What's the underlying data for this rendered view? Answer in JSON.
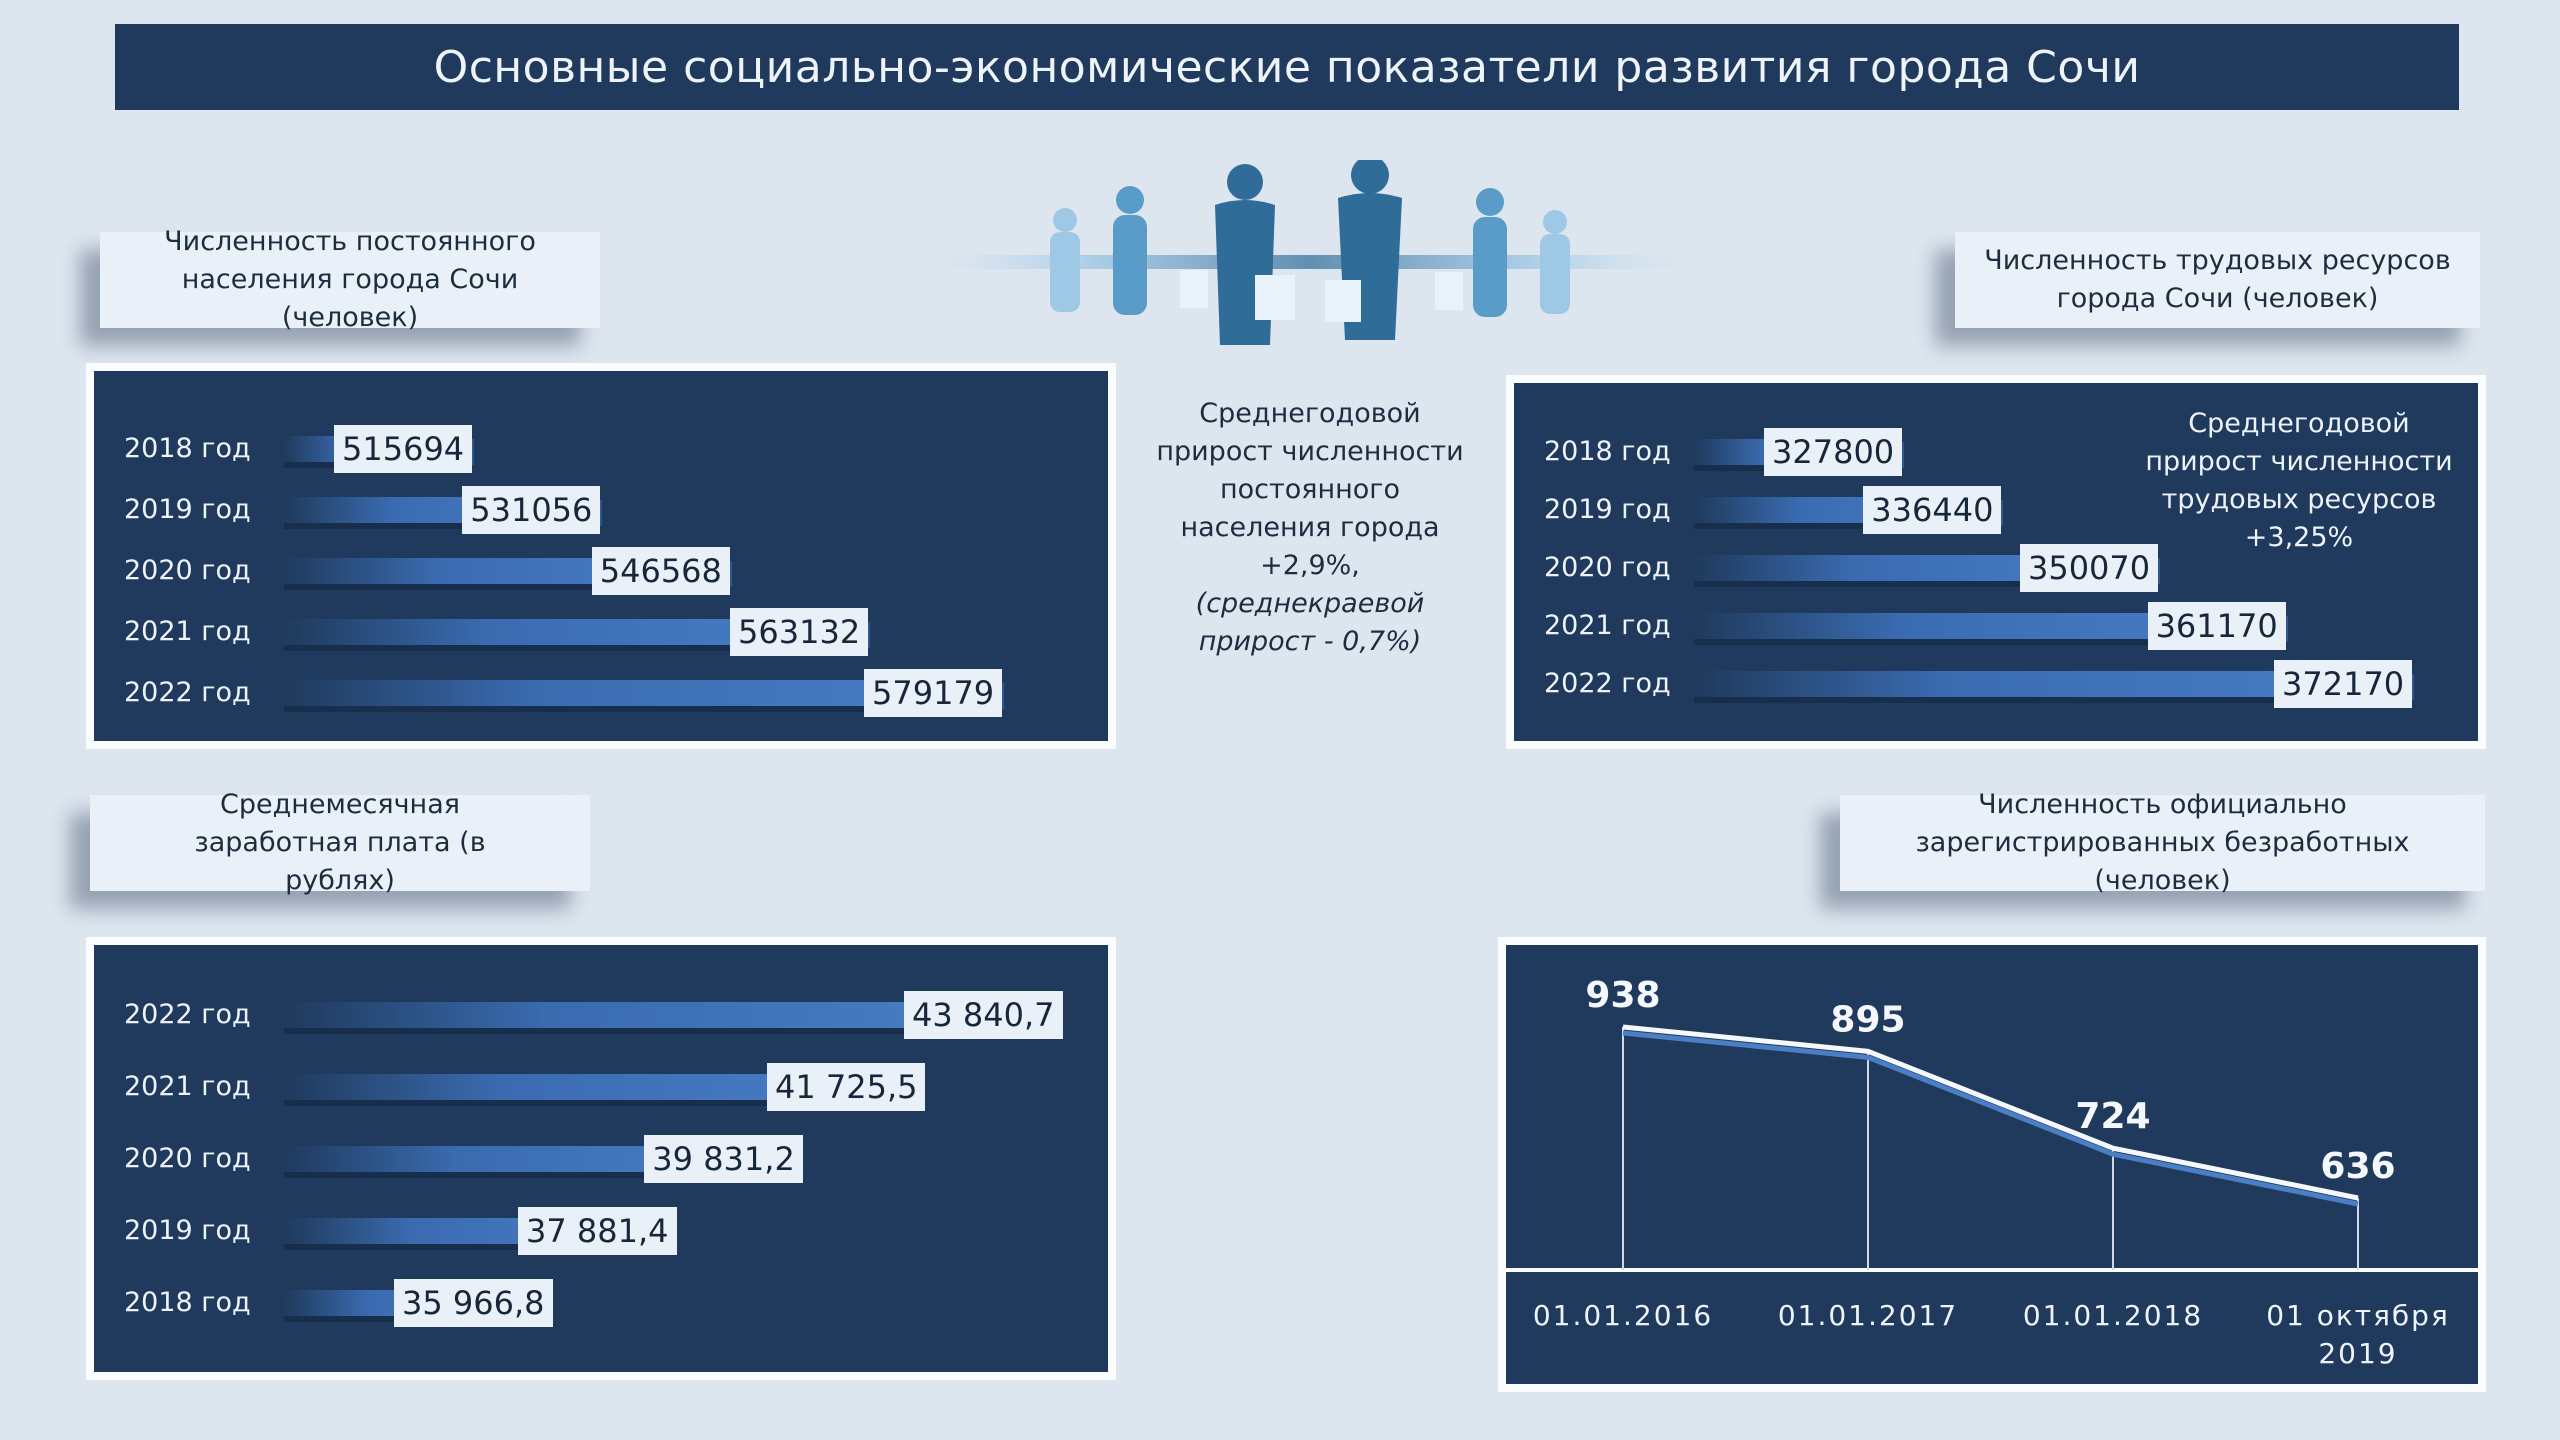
{
  "title": "Основные социально-экономические показатели развития города Сочи",
  "chart_data": [
    {
      "type": "bar",
      "title": "Численность постоянного населения города Сочи (человек)",
      "categories": [
        "2018 год",
        "2019 год",
        "2020 год",
        "2021 год",
        "2022 год"
      ],
      "values": [
        515694,
        531056,
        546568,
        563132,
        579179
      ],
      "value_labels": [
        "515694",
        "531056",
        "546568",
        "563132",
        "579179"
      ]
    },
    {
      "type": "bar",
      "title": "Численность трудовых ресурсов города Сочи (человек)",
      "categories": [
        "2018 год",
        "2019 год",
        "2020 год",
        "2021 год",
        "2022 год"
      ],
      "values": [
        327800,
        336440,
        350070,
        361170,
        372170
      ],
      "value_labels": [
        "327800",
        "336440",
        "350070",
        "361170",
        "372170"
      ]
    },
    {
      "type": "bar",
      "title": "Среднемесячная заработная плата (в рублях)",
      "categories": [
        "2022 год",
        "2021 год",
        "2020 год",
        "2019 год",
        "2018 год"
      ],
      "values": [
        43840.7,
        41725.5,
        39831.2,
        37881.4,
        35966.8
      ],
      "value_labels": [
        "43 840,7",
        "41 725,5",
        "39 831,2",
        "37 881,4",
        "35 966,8"
      ]
    },
    {
      "type": "line",
      "title": "Численность официально зарегистрированных безработных (человек)",
      "x": [
        "01.01.2016",
        "01.01.2017",
        "01.01.2018",
        "01 октября 2019"
      ],
      "y": [
        938,
        895,
        724,
        636
      ],
      "value_labels": [
        "938",
        "895",
        "724",
        "636"
      ]
    }
  ],
  "labels": {
    "population": "Численность постоянного населения города Сочи (человек)",
    "labor": "Численность трудовых ресурсов города Сочи (человек)",
    "salary": "Среднемесячная заработная плата (в рублях)",
    "unemployed": "Численность официально зарегистрированных безработных (человек)"
  },
  "notes": {
    "population_growth": [
      "Среднегодовой",
      "прирост численности",
      "постоянного",
      "населения города",
      "+2,9%,"
    ],
    "population_growth_italic": [
      "(среднекраевой",
      "прирост - 0,7%)"
    ],
    "labor_growth": [
      "Среднегодовой",
      "прирост численности",
      "трудовых ресурсов",
      "+3,25%"
    ]
  },
  "colors": {
    "panel": "#1f3a5c",
    "bar": "#4a7fc6",
    "background": "#dde5ef"
  }
}
